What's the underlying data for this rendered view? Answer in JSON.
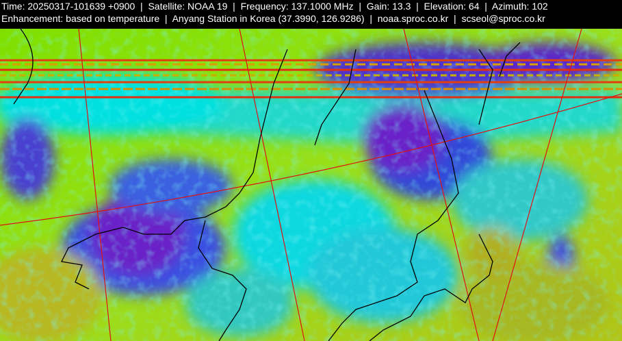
{
  "header": {
    "lines": [
      "Time: 20250317-101639 +0900  |  Satellite: NOAA 19  |  Frequency: 137.1000 MHz  |  Gain: 13.3  |  Elevation: 64  |  Azimuth: 102",
      "Enhancement: based on temperature  |  Anyang Station in Korea (37.3990, 126.9286)  |  noaa.sproc.co.kr  |  scseol@sproc.co.kr"
    ]
  }
}
